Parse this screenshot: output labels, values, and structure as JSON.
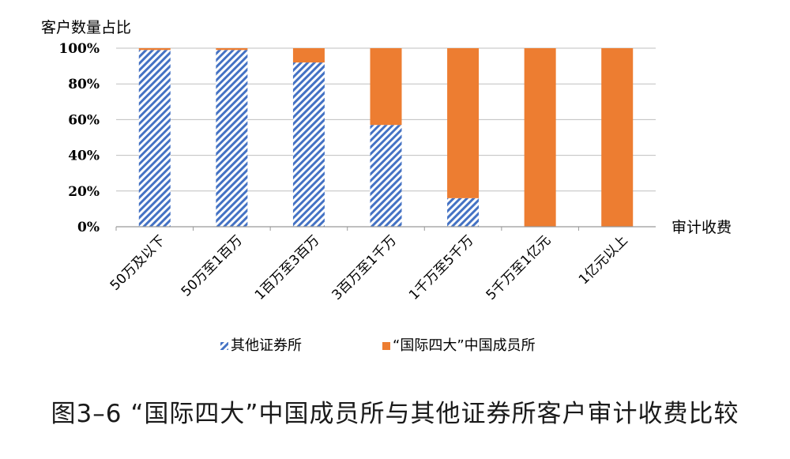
{
  "caption": "图3–6 “国际四大”中国成员所与其他证券所客户审计收费比较",
  "chart_data": {
    "type": "bar",
    "stacked": true,
    "ylabel": "客户数量占比",
    "xlabel": "审计收费",
    "ylim": [
      0,
      100
    ],
    "yticks": [
      "0%",
      "20%",
      "40%",
      "60%",
      "80%",
      "100%"
    ],
    "grid": true,
    "legend_position": "bottom",
    "categories": [
      "50万及以下",
      "50万至1百万",
      "1百万至3百万",
      "3百万至1千万",
      "1千万至5千万",
      "5千万至1亿元",
      "1亿元以上"
    ],
    "series": [
      {
        "name": "其他证券所",
        "values": [
          99,
          99,
          92,
          57,
          16,
          0,
          0
        ],
        "color": "#4472c4"
      },
      {
        "name": "“国际四大”中国成员所",
        "values": [
          1,
          1,
          8,
          43,
          84,
          100,
          100
        ],
        "color": "#ed7d31"
      }
    ]
  }
}
